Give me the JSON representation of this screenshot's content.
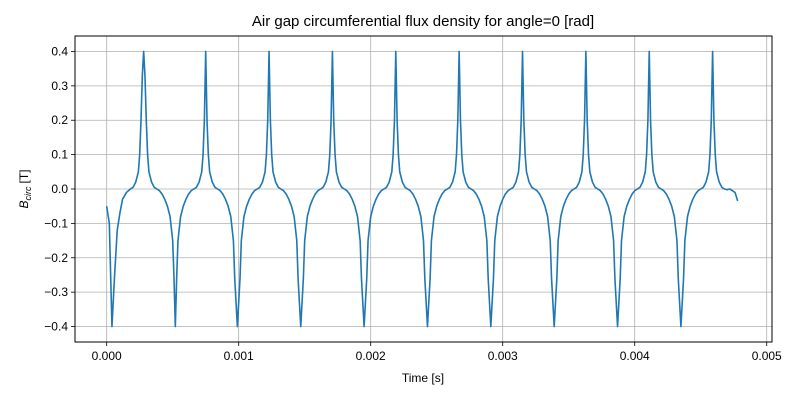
{
  "chart_data": {
    "type": "line",
    "title": "Air gap circumferential flux density for angle=0 [rad]",
    "xlabel": "Time [s]",
    "ylabel_main": "B",
    "ylabel_sub": "circ",
    "ylabel_unit": "[T]",
    "xlim": [
      -0.00024,
      0.00504
    ],
    "ylim": [
      -0.445,
      0.445
    ],
    "grid": true,
    "line_color": "#1f77b4",
    "x_ticks": [
      {
        "value": 0.0,
        "label": "0.000"
      },
      {
        "value": 0.001,
        "label": "0.001"
      },
      {
        "value": 0.002,
        "label": "0.002"
      },
      {
        "value": 0.003,
        "label": "0.003"
      },
      {
        "value": 0.004,
        "label": "0.004"
      },
      {
        "value": 0.005,
        "label": "0.005"
      }
    ],
    "y_ticks": [
      {
        "value": 0.4,
        "label": "0.4"
      },
      {
        "value": 0.3,
        "label": "0.3"
      },
      {
        "value": 0.2,
        "label": "0.2"
      },
      {
        "value": 0.1,
        "label": "0.1"
      },
      {
        "value": 0.0,
        "label": "0.0"
      },
      {
        "value": -0.1,
        "label": "−0.1"
      },
      {
        "value": -0.2,
        "label": "−0.2"
      },
      {
        "value": -0.3,
        "label": "−0.3"
      },
      {
        "value": -0.4,
        "label": "−0.4"
      }
    ],
    "series": [
      {
        "values": [
          [
            0.0,
            -0.05
          ],
          [
            2e-05,
            -0.1
          ],
          [
            4e-05,
            -0.4
          ],
          [
            6e-05,
            -0.25
          ],
          [
            8e-05,
            -0.12
          ],
          [
            0.0001,
            -0.07
          ],
          [
            0.00012,
            -0.03
          ],
          [
            0.00015,
            -0.01
          ],
          [
            0.00018,
            0.0
          ],
          [
            0.0002,
            0.005
          ],
          [
            0.00022,
            0.02
          ],
          [
            0.00024,
            0.05
          ],
          [
            0.00025,
            0.1
          ],
          [
            0.00026,
            0.2
          ],
          [
            0.00027,
            0.33
          ],
          [
            0.00028,
            0.4
          ],
          [
            0.00029,
            0.33
          ],
          [
            0.0003,
            0.2
          ],
          [
            0.00031,
            0.1
          ],
          [
            0.00032,
            0.05
          ],
          [
            0.00034,
            0.02
          ],
          [
            0.00036,
            0.005
          ],
          [
            0.00038,
            0.0
          ],
          [
            0.0004,
            -0.005
          ],
          [
            0.00042,
            -0.015
          ],
          [
            0.00044,
            -0.03
          ],
          [
            0.00046,
            -0.05
          ],
          [
            0.00048,
            -0.08
          ],
          [
            0.0005,
            -0.15
          ],
          [
            0.00051,
            -0.26
          ],
          [
            0.00052,
            -0.4
          ],
          [
            0.00053,
            -0.26
          ],
          [
            0.00054,
            -0.15
          ],
          [
            0.00056,
            -0.08
          ],
          [
            0.00058,
            -0.05
          ],
          [
            0.0006,
            -0.03
          ],
          [
            0.00062,
            -0.015
          ],
          [
            0.00064,
            -0.005
          ],
          [
            0.00066,
            0.0
          ],
          [
            0.00068,
            0.005
          ],
          [
            0.0007,
            0.02
          ],
          [
            0.00072,
            0.05
          ],
          [
            0.00073,
            0.1
          ],
          [
            0.00074,
            0.2
          ],
          [
            0.00075,
            0.4
          ],
          [
            0.00076,
            0.2
          ],
          [
            0.00077,
            0.1
          ],
          [
            0.00078,
            0.05
          ],
          [
            0.0008,
            0.02
          ],
          [
            0.00082,
            0.005
          ],
          [
            0.00084,
            0.0
          ],
          [
            0.00086,
            -0.005
          ],
          [
            0.00088,
            -0.015
          ],
          [
            0.0009,
            -0.03
          ],
          [
            0.00092,
            -0.05
          ],
          [
            0.00094,
            -0.08
          ],
          [
            0.00096,
            -0.15
          ],
          [
            0.00097,
            -0.26
          ],
          [
            0.00099,
            -0.4
          ],
          [
            0.00101,
            -0.26
          ],
          [
            0.00102,
            -0.15
          ],
          [
            0.00104,
            -0.08
          ],
          [
            0.00106,
            -0.05
          ],
          [
            0.00108,
            -0.03
          ],
          [
            0.0011,
            -0.015
          ],
          [
            0.00112,
            -0.005
          ],
          [
            0.00114,
            0.0
          ],
          [
            0.00116,
            0.005
          ],
          [
            0.00118,
            0.02
          ],
          [
            0.0012,
            0.05
          ],
          [
            0.00121,
            0.1
          ],
          [
            0.00122,
            0.2
          ],
          [
            0.00123,
            0.4
          ],
          [
            0.00124,
            0.2
          ],
          [
            0.00125,
            0.1
          ],
          [
            0.00126,
            0.05
          ],
          [
            0.00128,
            0.02
          ],
          [
            0.0013,
            0.005
          ],
          [
            0.00132,
            0.0
          ],
          [
            0.00134,
            -0.005
          ],
          [
            0.00136,
            -0.015
          ],
          [
            0.00138,
            -0.03
          ],
          [
            0.0014,
            -0.05
          ],
          [
            0.00142,
            -0.08
          ],
          [
            0.00144,
            -0.15
          ],
          [
            0.00145,
            -0.26
          ],
          [
            0.00147,
            -0.4
          ],
          [
            0.00149,
            -0.26
          ],
          [
            0.0015,
            -0.15
          ],
          [
            0.00152,
            -0.08
          ],
          [
            0.00154,
            -0.05
          ],
          [
            0.00156,
            -0.03
          ],
          [
            0.00158,
            -0.015
          ],
          [
            0.0016,
            -0.005
          ],
          [
            0.00162,
            0.0
          ],
          [
            0.00164,
            0.005
          ],
          [
            0.00166,
            0.02
          ],
          [
            0.00168,
            0.05
          ],
          [
            0.00169,
            0.1
          ],
          [
            0.0017,
            0.2
          ],
          [
            0.00171,
            0.4
          ],
          [
            0.00172,
            0.2
          ],
          [
            0.00173,
            0.1
          ],
          [
            0.00174,
            0.05
          ],
          [
            0.00176,
            0.02
          ],
          [
            0.00178,
            0.005
          ],
          [
            0.0018,
            0.0
          ],
          [
            0.00182,
            -0.005
          ],
          [
            0.00184,
            -0.015
          ],
          [
            0.00186,
            -0.03
          ],
          [
            0.00188,
            -0.05
          ],
          [
            0.0019,
            -0.08
          ],
          [
            0.00192,
            -0.15
          ],
          [
            0.00193,
            -0.26
          ],
          [
            0.00195,
            -0.4
          ],
          [
            0.00197,
            -0.26
          ],
          [
            0.00198,
            -0.15
          ],
          [
            0.002,
            -0.08
          ],
          [
            0.00202,
            -0.05
          ],
          [
            0.00204,
            -0.03
          ],
          [
            0.00206,
            -0.015
          ],
          [
            0.00208,
            -0.005
          ],
          [
            0.0021,
            0.0
          ],
          [
            0.00212,
            0.005
          ],
          [
            0.00214,
            0.02
          ],
          [
            0.00216,
            0.05
          ],
          [
            0.00217,
            0.1
          ],
          [
            0.00218,
            0.2
          ],
          [
            0.00219,
            0.4
          ],
          [
            0.0022,
            0.2
          ],
          [
            0.00221,
            0.1
          ],
          [
            0.00222,
            0.05
          ],
          [
            0.00224,
            0.02
          ],
          [
            0.00226,
            0.005
          ],
          [
            0.00228,
            0.0
          ],
          [
            0.0023,
            -0.005
          ],
          [
            0.00232,
            -0.015
          ],
          [
            0.00234,
            -0.03
          ],
          [
            0.00236,
            -0.05
          ],
          [
            0.00238,
            -0.08
          ],
          [
            0.0024,
            -0.15
          ],
          [
            0.00241,
            -0.26
          ],
          [
            0.00243,
            -0.4
          ],
          [
            0.00245,
            -0.26
          ],
          [
            0.00246,
            -0.15
          ],
          [
            0.00248,
            -0.08
          ],
          [
            0.0025,
            -0.05
          ],
          [
            0.00252,
            -0.03
          ],
          [
            0.00254,
            -0.015
          ],
          [
            0.00256,
            -0.005
          ],
          [
            0.00258,
            0.0
          ],
          [
            0.0026,
            0.005
          ],
          [
            0.00262,
            0.02
          ],
          [
            0.00264,
            0.05
          ],
          [
            0.00265,
            0.1
          ],
          [
            0.00266,
            0.2
          ],
          [
            0.00267,
            0.4
          ],
          [
            0.00268,
            0.2
          ],
          [
            0.00269,
            0.1
          ],
          [
            0.0027,
            0.05
          ],
          [
            0.00272,
            0.02
          ],
          [
            0.00274,
            0.005
          ],
          [
            0.00276,
            0.0
          ],
          [
            0.00278,
            -0.005
          ],
          [
            0.0028,
            -0.015
          ],
          [
            0.00282,
            -0.03
          ],
          [
            0.00284,
            -0.05
          ],
          [
            0.00286,
            -0.08
          ],
          [
            0.00288,
            -0.15
          ],
          [
            0.00289,
            -0.26
          ],
          [
            0.00291,
            -0.4
          ],
          [
            0.00293,
            -0.26
          ],
          [
            0.00294,
            -0.15
          ],
          [
            0.00296,
            -0.08
          ],
          [
            0.00298,
            -0.05
          ],
          [
            0.003,
            -0.03
          ],
          [
            0.00302,
            -0.015
          ],
          [
            0.00304,
            -0.005
          ],
          [
            0.00306,
            0.0
          ],
          [
            0.00308,
            0.005
          ],
          [
            0.0031,
            0.02
          ],
          [
            0.00312,
            0.05
          ],
          [
            0.00313,
            0.1
          ],
          [
            0.00314,
            0.2
          ],
          [
            0.00315,
            0.4
          ],
          [
            0.00316,
            0.2
          ],
          [
            0.00317,
            0.1
          ],
          [
            0.00318,
            0.05
          ],
          [
            0.0032,
            0.02
          ],
          [
            0.00322,
            0.005
          ],
          [
            0.00324,
            0.0
          ],
          [
            0.00326,
            -0.005
          ],
          [
            0.00328,
            -0.015
          ],
          [
            0.0033,
            -0.03
          ],
          [
            0.00332,
            -0.05
          ],
          [
            0.00334,
            -0.08
          ],
          [
            0.00336,
            -0.15
          ],
          [
            0.00337,
            -0.26
          ],
          [
            0.00339,
            -0.4
          ],
          [
            0.00341,
            -0.26
          ],
          [
            0.00342,
            -0.15
          ],
          [
            0.00344,
            -0.08
          ],
          [
            0.00346,
            -0.05
          ],
          [
            0.00348,
            -0.03
          ],
          [
            0.0035,
            -0.015
          ],
          [
            0.00352,
            -0.005
          ],
          [
            0.00354,
            0.0
          ],
          [
            0.00356,
            0.005
          ],
          [
            0.00358,
            0.02
          ],
          [
            0.0036,
            0.05
          ],
          [
            0.00361,
            0.1
          ],
          [
            0.00362,
            0.2
          ],
          [
            0.00363,
            0.4
          ],
          [
            0.00364,
            0.2
          ],
          [
            0.00365,
            0.1
          ],
          [
            0.00366,
            0.05
          ],
          [
            0.00368,
            0.02
          ],
          [
            0.0037,
            0.005
          ],
          [
            0.00372,
            0.0
          ],
          [
            0.00374,
            -0.005
          ],
          [
            0.00376,
            -0.015
          ],
          [
            0.00378,
            -0.03
          ],
          [
            0.0038,
            -0.05
          ],
          [
            0.00382,
            -0.08
          ],
          [
            0.00384,
            -0.15
          ],
          [
            0.00385,
            -0.26
          ],
          [
            0.00387,
            -0.4
          ],
          [
            0.00389,
            -0.26
          ],
          [
            0.0039,
            -0.15
          ],
          [
            0.00392,
            -0.08
          ],
          [
            0.00394,
            -0.05
          ],
          [
            0.00396,
            -0.03
          ],
          [
            0.00398,
            -0.015
          ],
          [
            0.004,
            -0.005
          ],
          [
            0.00402,
            0.0
          ],
          [
            0.00404,
            0.005
          ],
          [
            0.00406,
            0.02
          ],
          [
            0.00408,
            0.05
          ],
          [
            0.00409,
            0.1
          ],
          [
            0.0041,
            0.2
          ],
          [
            0.00411,
            0.4
          ],
          [
            0.00412,
            0.2
          ],
          [
            0.00413,
            0.1
          ],
          [
            0.00414,
            0.05
          ],
          [
            0.00416,
            0.02
          ],
          [
            0.00418,
            0.005
          ],
          [
            0.0042,
            0.0
          ],
          [
            0.00422,
            -0.005
          ],
          [
            0.00424,
            -0.015
          ],
          [
            0.00426,
            -0.03
          ],
          [
            0.00428,
            -0.05
          ],
          [
            0.0043,
            -0.08
          ],
          [
            0.00432,
            -0.15
          ],
          [
            0.00433,
            -0.26
          ],
          [
            0.00435,
            -0.4
          ],
          [
            0.00437,
            -0.26
          ],
          [
            0.00438,
            -0.15
          ],
          [
            0.0044,
            -0.08
          ],
          [
            0.00442,
            -0.05
          ],
          [
            0.00444,
            -0.03
          ],
          [
            0.00446,
            -0.015
          ],
          [
            0.00448,
            -0.005
          ],
          [
            0.0045,
            0.0
          ],
          [
            0.00452,
            0.005
          ],
          [
            0.00454,
            0.02
          ],
          [
            0.00456,
            0.05
          ],
          [
            0.00457,
            0.1
          ],
          [
            0.00458,
            0.2
          ],
          [
            0.00459,
            0.4
          ],
          [
            0.0046,
            0.2
          ],
          [
            0.00461,
            0.1
          ],
          [
            0.00462,
            0.05
          ],
          [
            0.00464,
            0.02
          ],
          [
            0.00466,
            0.005
          ],
          [
            0.00468,
            0.0
          ],
          [
            0.0047,
            -0.002
          ],
          [
            0.00472,
            0.0
          ],
          [
            0.00474,
            -0.005
          ],
          [
            0.00476,
            -0.01
          ],
          [
            0.00478,
            -0.035
          ]
        ]
      }
    ]
  }
}
